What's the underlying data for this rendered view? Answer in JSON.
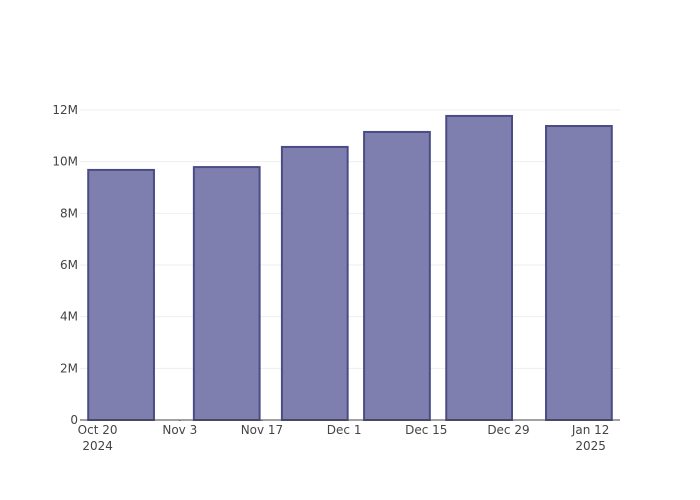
{
  "chart_data": {
    "type": "bar",
    "x": [
      "2024-10-24",
      "2024-11-11",
      "2024-11-26",
      "2024-12-10",
      "2024-12-24",
      "2025-01-10"
    ],
    "values": [
      9680000,
      9790000,
      10570000,
      11150000,
      11770000,
      11380000
    ],
    "color": "#7f7faf",
    "xlim": [
      "2024-10-17",
      "2025-01-17"
    ],
    "xticks": [
      {
        "value": "2024-10-20",
        "label": "Oct 20\n2024"
      },
      {
        "value": "2024-11-03",
        "label": "Nov 3"
      },
      {
        "value": "2024-11-17",
        "label": "Nov 17"
      },
      {
        "value": "2024-12-01",
        "label": "Dec 1"
      },
      {
        "value": "2024-12-15",
        "label": "Dec 15"
      },
      {
        "value": "2024-12-29",
        "label": "Dec 29"
      },
      {
        "value": "2025-01-12",
        "label": "Jan 12\n2025"
      }
    ],
    "ylim": [
      0,
      12000000
    ],
    "yticks": [
      0,
      {
        "value": 2000000,
        "label": "2M"
      },
      {
        "value": 4000000,
        "label": "4M"
      },
      {
        "value": 6000000,
        "label": "6M"
      },
      {
        "value": 8000000,
        "label": "8M"
      },
      {
        "value": 10000000,
        "label": "10M"
      },
      {
        "value": 12000000,
        "label": "12M"
      }
    ],
    "grid": true
  }
}
